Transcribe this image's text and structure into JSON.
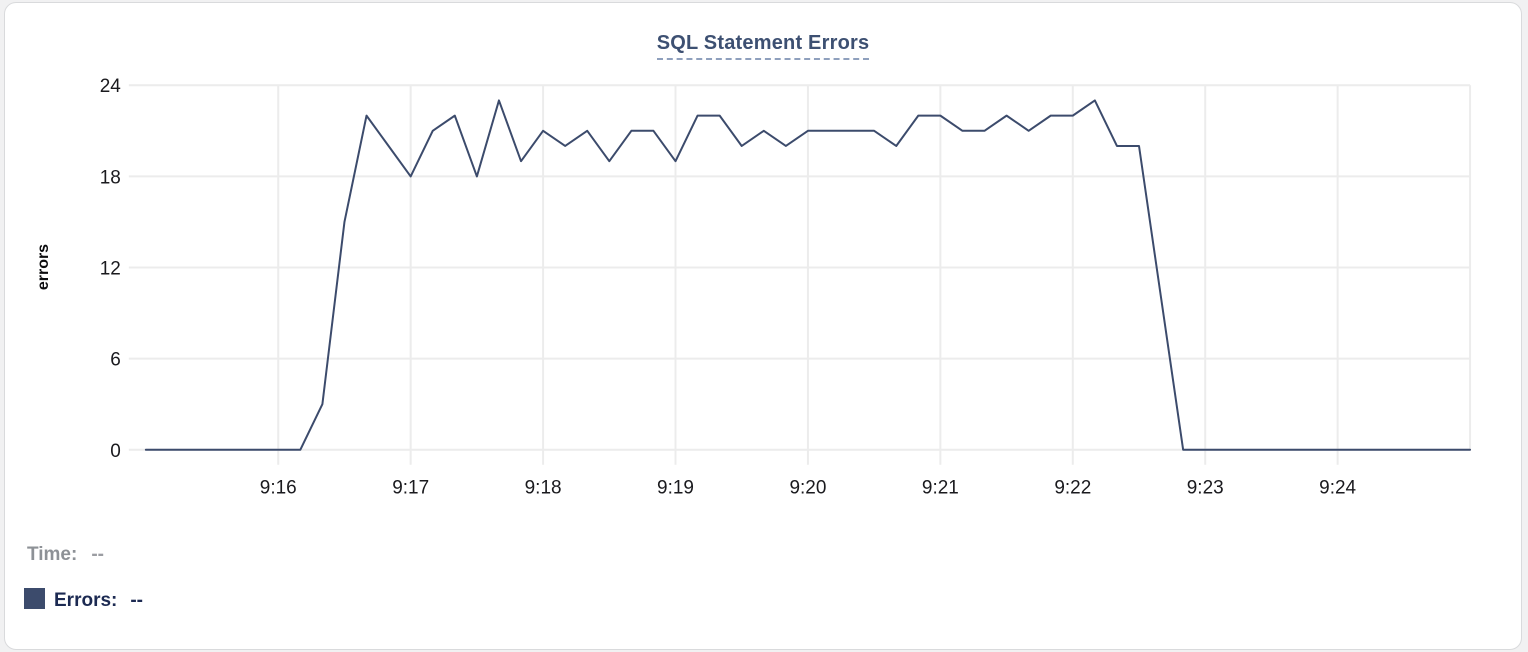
{
  "chart": {
    "title": "SQL Statement Errors"
  },
  "legend": {
    "time_label": "Time:",
    "time_value": "--",
    "errors_label": "Errors:",
    "errors_value": "--",
    "swatch_color": "#3c4b6c"
  },
  "colors": {
    "line": "#3c4b6c",
    "grid": "#ececec",
    "axis_text": "#1a1a1e",
    "axis_label_text": "#0c0c0e",
    "title_text": "#3d5072",
    "title_underline": "#8fa0bd",
    "card_border": "#d9dadc",
    "page_background": "#f1f1f2",
    "legend_time_text": "#8d9196",
    "legend_errors_text": "#1c2a52"
  },
  "chart_data": {
    "type": "line",
    "title": "SQL Statement Errors",
    "xlabel": "",
    "ylabel": "errors",
    "ylim": [
      0,
      24
    ],
    "y_ticks": [
      0,
      6,
      12,
      18,
      24
    ],
    "x_tick_labels": [
      "9:16",
      "9:17",
      "9:18",
      "9:19",
      "9:20",
      "9:21",
      "9:22",
      "9:23",
      "9:24"
    ],
    "xlim": [
      "9:15:00",
      "9:25:00"
    ],
    "grid": true,
    "legend_position": "bottom-left",
    "x": [
      "9:15:00",
      "9:15:10",
      "9:15:20",
      "9:15:30",
      "9:15:40",
      "9:15:50",
      "9:16:00",
      "9:16:10",
      "9:16:20",
      "9:16:30",
      "9:16:40",
      "9:16:50",
      "9:17:00",
      "9:17:10",
      "9:17:20",
      "9:17:30",
      "9:17:40",
      "9:17:50",
      "9:18:00",
      "9:18:10",
      "9:18:20",
      "9:18:30",
      "9:18:40",
      "9:18:50",
      "9:19:00",
      "9:19:10",
      "9:19:20",
      "9:19:30",
      "9:19:40",
      "9:19:50",
      "9:20:00",
      "9:20:10",
      "9:20:20",
      "9:20:30",
      "9:20:40",
      "9:20:50",
      "9:21:00",
      "9:21:10",
      "9:21:20",
      "9:21:30",
      "9:21:40",
      "9:21:50",
      "9:22:00",
      "9:22:10",
      "9:22:20",
      "9:22:30",
      "9:22:40",
      "9:22:50",
      "9:23:00",
      "9:23:10",
      "9:23:20",
      "9:23:30",
      "9:23:40",
      "9:23:50",
      "9:24:00",
      "9:24:10",
      "9:24:20",
      "9:24:30",
      "9:24:40",
      "9:24:50",
      "9:25:00"
    ],
    "series": [
      {
        "name": "Errors",
        "color": "#3c4b6c",
        "values": [
          0,
          0,
          0,
          0,
          0,
          0,
          0,
          0,
          3,
          15,
          22,
          20,
          18,
          21,
          22,
          18,
          23,
          19,
          21,
          20,
          21,
          19,
          21,
          21,
          19,
          22,
          22,
          20,
          21,
          20,
          21,
          21,
          21,
          21,
          20,
          22,
          22,
          21,
          21,
          22,
          21,
          22,
          22,
          23,
          20,
          20,
          10,
          0,
          0,
          0,
          0,
          0,
          0,
          0,
          0,
          0,
          0,
          0,
          0,
          0,
          0
        ]
      }
    ]
  }
}
